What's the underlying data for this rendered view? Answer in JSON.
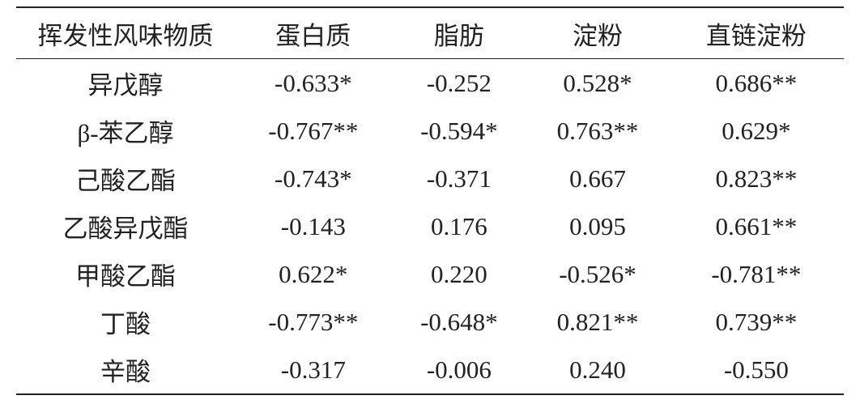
{
  "table": {
    "header": [
      "挥发性风味物质",
      "蛋白质",
      "脂肪",
      "淀粉",
      "直链淀粉"
    ],
    "rows": [
      [
        "异戊醇",
        "-0.633*",
        "-0.252",
        "0.528*",
        "0.686**"
      ],
      [
        "β-苯乙醇",
        "-0.767**",
        "-0.594*",
        "0.763**",
        "0.629*"
      ],
      [
        "己酸乙酯",
        "-0.743*",
        "-0.371",
        "0.667",
        "0.823**"
      ],
      [
        "乙酸异戊酯",
        "-0.143",
        "0.176",
        "0.095",
        "0.661**"
      ],
      [
        "甲酸乙酯",
        "0.622*",
        "0.220",
        "-0.526*",
        "-0.781**"
      ],
      [
        "丁酸",
        "-0.773**",
        "-0.648*",
        "0.821**",
        "0.739**"
      ],
      [
        "辛酸",
        "-0.317",
        "-0.006",
        "0.240",
        "-0.550"
      ]
    ]
  }
}
